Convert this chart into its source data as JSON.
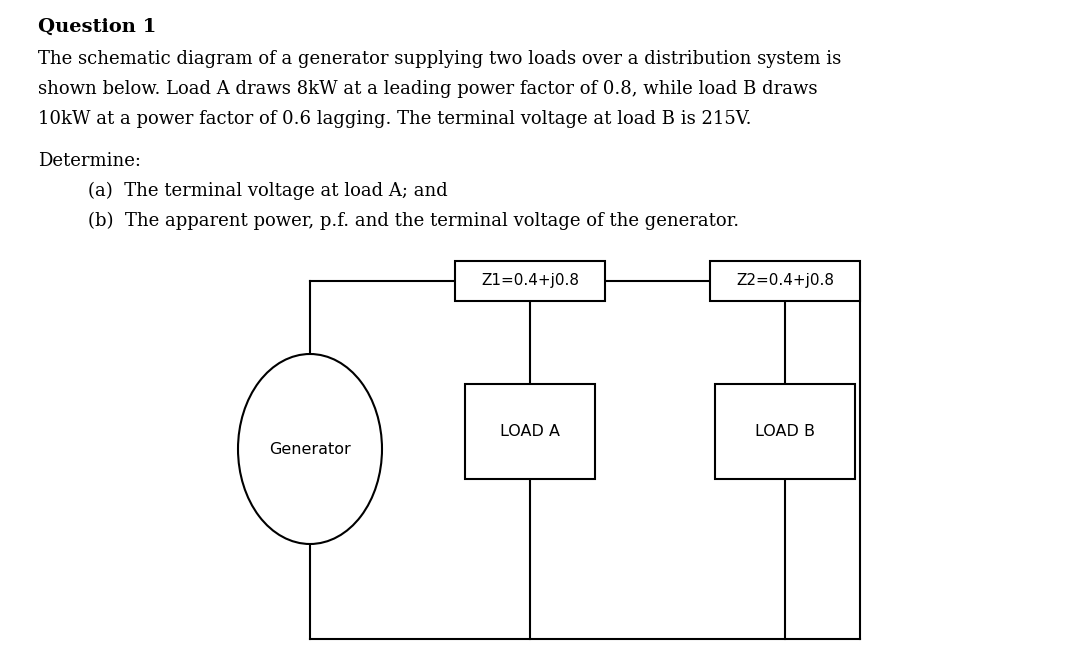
{
  "title": "Question 1",
  "paragraph_line1": "The schematic diagram of a generator supplying two loads over a distribution system is",
  "paragraph_line2": "shown below. Load A draws 8kW at a leading power factor of 0.8, while load B draws",
  "paragraph_line3": "10kW at a power factor of 0.6 lagging. The terminal voltage at load B is 215V.",
  "determine_label": "Determine:",
  "item_a": "(a)  The terminal voltage at load A; and",
  "item_b": "(b)  The apparent power, p.f. and the terminal voltage of the generator.",
  "z1_label": "Z1=0.4+j0.8",
  "z2_label": "Z2=0.4+j0.8",
  "load_a_label": "LOAD A",
  "load_b_label": "LOAD B",
  "generator_label": "Generator",
  "bg_color": "#ffffff",
  "text_color": "#000000",
  "line_color": "#000000",
  "box_color": "#ffffff",
  "fig_width": 10.73,
  "fig_height": 6.59,
  "dpi": 100,
  "serif_font": "DejaVu Serif",
  "sans_font": "DejaVu Sans",
  "text_fontsize": 13.5,
  "diagram_fontsize": 11.5
}
